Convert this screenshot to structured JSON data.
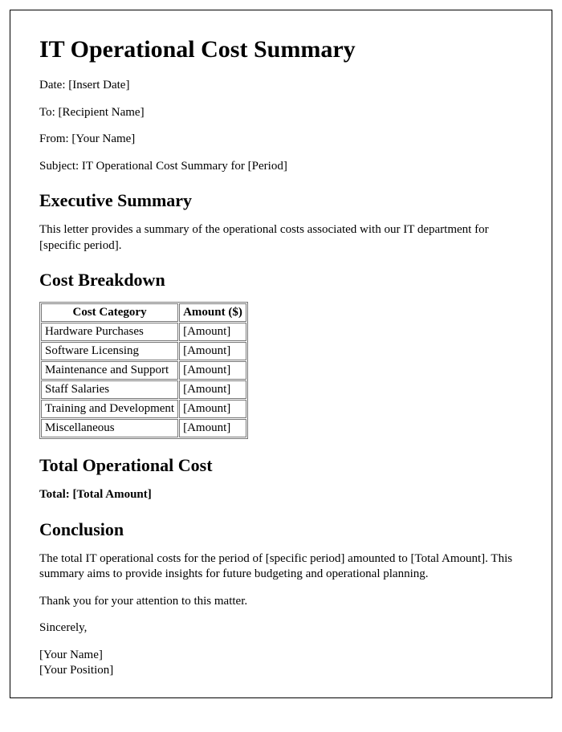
{
  "title": "IT Operational Cost Summary",
  "header_lines": {
    "date": "Date: [Insert Date]",
    "to": "To: [Recipient Name]",
    "from": "From: [Your Name]",
    "subject": "Subject: IT Operational Cost Summary for [Period]"
  },
  "sections": {
    "exec_heading": "Executive Summary",
    "exec_text": "This letter provides a summary of the operational costs associated with our IT department for [specific period].",
    "breakdown_heading": "Cost Breakdown",
    "total_heading": "Total Operational Cost",
    "total_line": "Total: [Total Amount]",
    "conclusion_heading": "Conclusion",
    "conclusion_text": "The total IT operational costs for the period of [specific period] amounted to [Total Amount]. This summary aims to provide insights for future budgeting and operational planning.",
    "thanks": "Thank you for your attention to this matter.",
    "closing": "Sincerely,"
  },
  "signature": {
    "name": "[Your Name]",
    "position": "[Your Position]"
  },
  "cost_table": {
    "columns": [
      "Cost Category",
      "Amount ($)"
    ],
    "rows": [
      [
        "Hardware Purchases",
        "[Amount]"
      ],
      [
        "Software Licensing",
        "[Amount]"
      ],
      [
        "Maintenance and Support",
        "[Amount]"
      ],
      [
        "Staff Salaries",
        "[Amount]"
      ],
      [
        "Training and Development",
        "[Amount]"
      ],
      [
        "Miscellaneous",
        "[Amount]"
      ]
    ],
    "border_color": "#777777",
    "font_size": 15
  },
  "colors": {
    "text": "#000000",
    "background": "#ffffff",
    "frame_border": "#000000"
  }
}
